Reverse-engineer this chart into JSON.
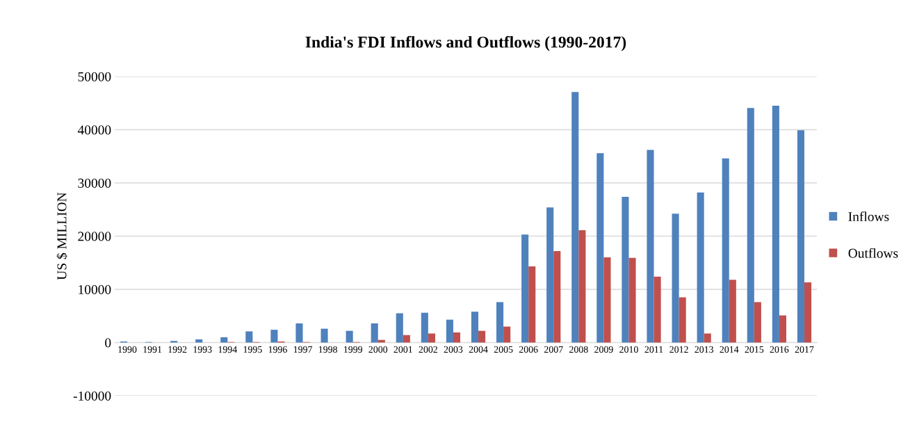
{
  "chart_data": {
    "type": "bar",
    "title": "India's FDI Inflows and Outflows (1990-2017)",
    "ylabel": "US $ MILLION",
    "categories": [
      "1990",
      "1991",
      "1992",
      "1993",
      "1994",
      "1995",
      "1996",
      "1997",
      "1998",
      "1999",
      "2000",
      "2001",
      "2002",
      "2003",
      "2004",
      "2005",
      "2006",
      "2007",
      "2008",
      "2009",
      "2010",
      "2011",
      "2012",
      "2013",
      "2014",
      "2015",
      "2016",
      "2017"
    ],
    "series": [
      {
        "name": "Inflows",
        "color": "#4f81bd",
        "values": [
          200,
          100,
          300,
          600,
          1000,
          2100,
          2400,
          3600,
          2600,
          2200,
          3600,
          5500,
          5600,
          4300,
          5800,
          7600,
          20300,
          25400,
          47100,
          35600,
          27400,
          36200,
          24200,
          28200,
          34600,
          44100,
          44500,
          39900
        ]
      },
      {
        "name": "Outflows",
        "color": "#c0504d",
        "values": [
          0,
          0,
          0,
          0,
          100,
          100,
          200,
          100,
          0,
          100,
          500,
          1400,
          1700,
          1900,
          2200,
          3000,
          14300,
          17200,
          21100,
          16000,
          15900,
          12400,
          8500,
          1700,
          11800,
          7600,
          5100,
          11300
        ]
      }
    ],
    "ylim": [
      -10000,
      50000
    ],
    "yticks": [
      -10000,
      0,
      10000,
      20000,
      30000,
      40000,
      50000
    ],
    "grid": "y",
    "legend": "right"
  }
}
